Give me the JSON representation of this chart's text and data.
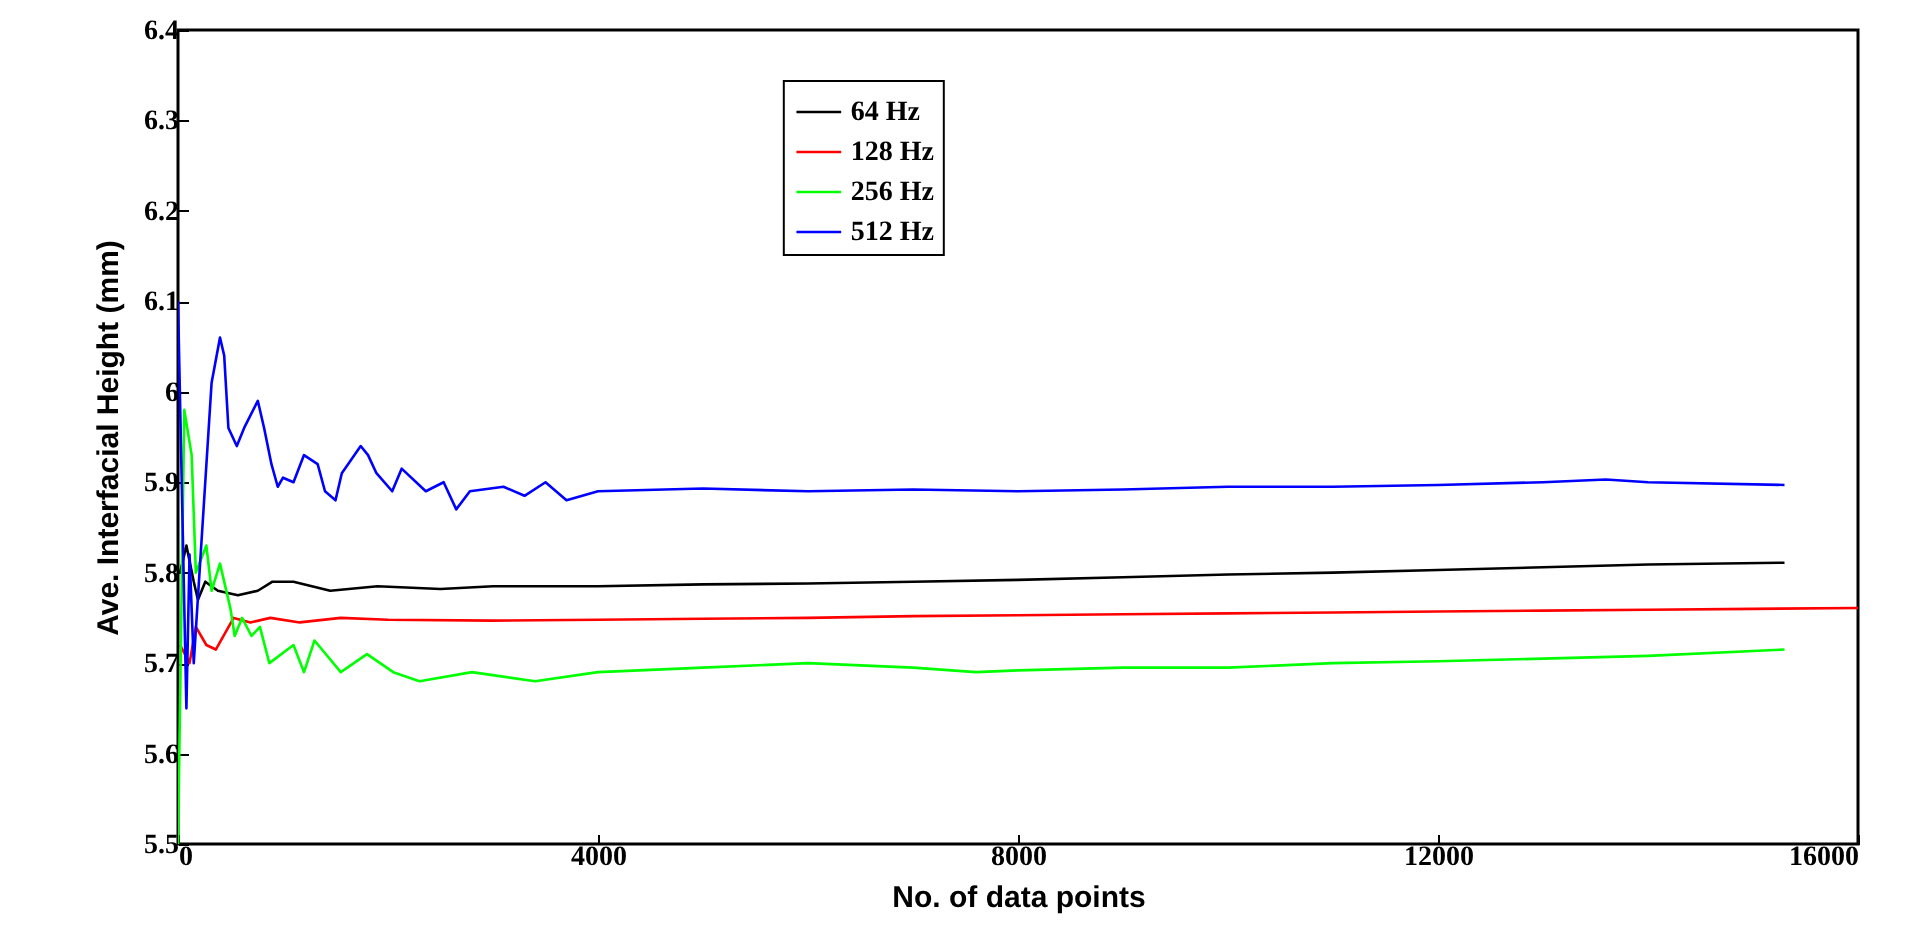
{
  "chart_data": {
    "type": "line",
    "xlabel": "No. of data points",
    "ylabel": "Ave. Interfacial Height (mm)",
    "xlim": [
      0,
      16000
    ],
    "ylim": [
      5.5,
      6.4
    ],
    "xticks": [
      0,
      4000,
      8000,
      12000,
      16000
    ],
    "yticks": [
      5.5,
      5.6,
      5.7,
      5.8,
      5.9,
      6,
      6.1,
      6.2,
      6.3,
      6.4
    ],
    "grid": false,
    "legend": "top",
    "marker": "none",
    "line_style": "solid",
    "series": [
      {
        "name": "64 Hz",
        "color": "#000000",
        "x": [
          20,
          80,
          150,
          190,
          260,
          380,
          570,
          760,
          900,
          1100,
          1450,
          1900,
          2500,
          3000,
          4000,
          5000,
          6000,
          7000,
          8000,
          9000,
          10000,
          11000,
          12000,
          13000,
          14000,
          15300
        ],
        "values": [
          5.8,
          5.83,
          5.79,
          5.77,
          5.79,
          5.78,
          5.775,
          5.78,
          5.79,
          5.79,
          5.78,
          5.785,
          5.782,
          5.785,
          5.785,
          5.787,
          5.788,
          5.79,
          5.792,
          5.795,
          5.798,
          5.8,
          5.803,
          5.806,
          5.809,
          5.811
        ]
      },
      {
        "name": "128 Hz",
        "color": "#ff0000",
        "x": [
          20,
          110,
          170,
          270,
          360,
          530,
          690,
          880,
          1160,
          1550,
          2000,
          3000,
          4000,
          5000,
          6000,
          7000,
          8000,
          9000,
          10000,
          11000,
          12000,
          13000,
          14000,
          15000,
          16000
        ],
        "values": [
          5.72,
          5.7,
          5.74,
          5.72,
          5.715,
          5.75,
          5.745,
          5.75,
          5.745,
          5.75,
          5.748,
          5.747,
          5.748,
          5.749,
          5.75,
          5.752,
          5.753,
          5.754,
          5.755,
          5.756,
          5.757,
          5.758,
          5.759,
          5.76,
          5.761
        ]
      },
      {
        "name": "256 Hz",
        "color": "#00ff00",
        "x": [
          0,
          60,
          130,
          170,
          270,
          320,
          400,
          500,
          540,
          610,
          700,
          780,
          870,
          1100,
          1200,
          1300,
          1550,
          1800,
          2050,
          2300,
          2800,
          3400,
          4000,
          5000,
          6000,
          7000,
          7600,
          8000,
          9000,
          10000,
          11000,
          12000,
          13000,
          14000,
          15300
        ],
        "values": [
          5.5,
          5.98,
          5.93,
          5.8,
          5.83,
          5.78,
          5.81,
          5.76,
          5.73,
          5.75,
          5.73,
          5.74,
          5.7,
          5.72,
          5.69,
          5.725,
          5.69,
          5.71,
          5.69,
          5.68,
          5.69,
          5.68,
          5.69,
          5.695,
          5.7,
          5.695,
          5.69,
          5.692,
          5.695,
          5.695,
          5.7,
          5.702,
          5.705,
          5.708,
          5.715
        ]
      },
      {
        "name": "512 Hz",
        "color": "#0000ff",
        "x": [
          0,
          80,
          110,
          150,
          320,
          400,
          440,
          480,
          560,
          630,
          760,
          820,
          890,
          950,
          1000,
          1100,
          1200,
          1330,
          1400,
          1500,
          1560,
          1740,
          1810,
          1890,
          2040,
          2130,
          2360,
          2530,
          2650,
          2780,
          3100,
          3300,
          3500,
          3700,
          4000,
          5000,
          6000,
          7000,
          8000,
          9000,
          10000,
          11000,
          12000,
          13000,
          13600,
          14000,
          15300
        ],
        "values": [
          6.1,
          5.65,
          5.82,
          5.7,
          6.01,
          6.06,
          6.04,
          5.96,
          5.94,
          5.96,
          5.99,
          5.96,
          5.92,
          5.895,
          5.905,
          5.9,
          5.93,
          5.92,
          5.89,
          5.88,
          5.91,
          5.94,
          5.93,
          5.91,
          5.89,
          5.915,
          5.89,
          5.9,
          5.87,
          5.89,
          5.895,
          5.885,
          5.9,
          5.88,
          5.89,
          5.893,
          5.89,
          5.892,
          5.89,
          5.892,
          5.895,
          5.895,
          5.897,
          5.9,
          5.903,
          5.9,
          5.897
        ]
      }
    ]
  }
}
